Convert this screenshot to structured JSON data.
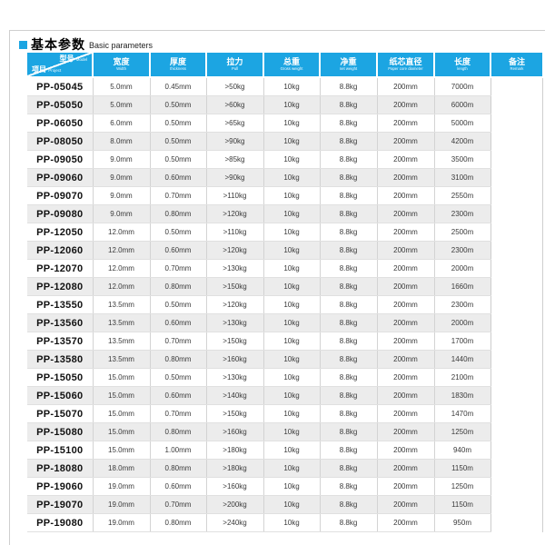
{
  "page": {
    "title_zh": "基本参数",
    "title_en": "Basic parameters"
  },
  "colors": {
    "header_blue": "#1ca5e2",
    "row_alt_gray": "#ececec",
    "title_square_blue": "#1ca5e2"
  },
  "table": {
    "corner": {
      "top_zh": "型号",
      "top_en": "Model",
      "bottom_zh": "项目",
      "bottom_en": "Project"
    },
    "columns": [
      {
        "zh": "宽度",
        "en": "Width"
      },
      {
        "zh": "厚度",
        "en": "thickness"
      },
      {
        "zh": "拉力",
        "en": "Pull"
      },
      {
        "zh": "总重",
        "en": "Gross weight"
      },
      {
        "zh": "净重",
        "en": "net weight"
      },
      {
        "zh": "纸芯直径",
        "en": "Paper core diameter"
      },
      {
        "zh": "长度",
        "en": "length"
      },
      {
        "zh": "备注",
        "en": "Remark"
      }
    ],
    "rows": [
      [
        "PP-05045",
        "5.0mm",
        "0.45mm",
        ">50kg",
        "10kg",
        "8.8kg",
        "200mm",
        "7000m",
        ""
      ],
      [
        "PP-05050",
        "5.0mm",
        "0.50mm",
        ">60kg",
        "10kg",
        "8.8kg",
        "200mm",
        "6000m",
        ""
      ],
      [
        "PP-06050",
        "6.0mm",
        "0.50mm",
        ">65kg",
        "10kg",
        "8.8kg",
        "200mm",
        "5000m",
        ""
      ],
      [
        "PP-08050",
        "8.0mm",
        "0.50mm",
        ">90kg",
        "10kg",
        "8.8kg",
        "200mm",
        "4200m",
        ""
      ],
      [
        "PP-09050",
        "9.0mm",
        "0.50mm",
        ">85kg",
        "10kg",
        "8.8kg",
        "200mm",
        "3500m",
        ""
      ],
      [
        "PP-09060",
        "9.0mm",
        "0.60mm",
        ">90kg",
        "10kg",
        "8.8kg",
        "200mm",
        "3100m",
        ""
      ],
      [
        "PP-09070",
        "9.0mm",
        "0.70mm",
        ">110kg",
        "10kg",
        "8.8kg",
        "200mm",
        "2550m",
        ""
      ],
      [
        "PP-09080",
        "9.0mm",
        "0.80mm",
        ">120kg",
        "10kg",
        "8.8kg",
        "200mm",
        "2300m",
        ""
      ],
      [
        "PP-12050",
        "12.0mm",
        "0.50mm",
        ">110kg",
        "10kg",
        "8.8kg",
        "200mm",
        "2500m",
        ""
      ],
      [
        "PP-12060",
        "12.0mm",
        "0.60mm",
        ">120kg",
        "10kg",
        "8.8kg",
        "200mm",
        "2300m",
        ""
      ],
      [
        "PP-12070",
        "12.0mm",
        "0.70mm",
        ">130kg",
        "10kg",
        "8.8kg",
        "200mm",
        "2000m",
        ""
      ],
      [
        "PP-12080",
        "12.0mm",
        "0.80mm",
        ">150kg",
        "10kg",
        "8.8kg",
        "200mm",
        "1660m",
        ""
      ],
      [
        "PP-13550",
        "13.5mm",
        "0.50mm",
        ">120kg",
        "10kg",
        "8.8kg",
        "200mm",
        "2300m",
        ""
      ],
      [
        "PP-13560",
        "13.5mm",
        "0.60mm",
        ">130kg",
        "10kg",
        "8.8kg",
        "200mm",
        "2000m",
        ""
      ],
      [
        "PP-13570",
        "13.5mm",
        "0.70mm",
        ">150kg",
        "10kg",
        "8.8kg",
        "200mm",
        "1700m",
        ""
      ],
      [
        "PP-13580",
        "13.5mm",
        "0.80mm",
        ">160kg",
        "10kg",
        "8.8kg",
        "200mm",
        "1440m",
        ""
      ],
      [
        "PP-15050",
        "15.0mm",
        "0.50mm",
        ">130kg",
        "10kg",
        "8.8kg",
        "200mm",
        "2100m",
        ""
      ],
      [
        "PP-15060",
        "15.0mm",
        "0.60mm",
        ">140kg",
        "10kg",
        "8.8kg",
        "200mm",
        "1830m",
        ""
      ],
      [
        "PP-15070",
        "15.0mm",
        "0.70mm",
        ">150kg",
        "10kg",
        "8.8kg",
        "200mm",
        "1470m",
        ""
      ],
      [
        "PP-15080",
        "15.0mm",
        "0.80mm",
        ">160kg",
        "10kg",
        "8.8kg",
        "200mm",
        "1250m",
        ""
      ],
      [
        "PP-15100",
        "15.0mm",
        "1.00mm",
        ">180kg",
        "10kg",
        "8.8kg",
        "200mm",
        "940m",
        ""
      ],
      [
        "PP-18080",
        "18.0mm",
        "0.80mm",
        ">180kg",
        "10kg",
        "8.8kg",
        "200mm",
        "1150m",
        ""
      ],
      [
        "PP-19060",
        "19.0mm",
        "0.60mm",
        ">160kg",
        "10kg",
        "8.8kg",
        "200mm",
        "1250m",
        ""
      ],
      [
        "PP-19070",
        "19.0mm",
        "0.70mm",
        ">200kg",
        "10kg",
        "8.8kg",
        "200mm",
        "1150m",
        ""
      ],
      [
        "PP-19080",
        "19.0mm",
        "0.80mm",
        ">240kg",
        "10kg",
        "8.8kg",
        "200mm",
        "950m",
        ""
      ]
    ]
  }
}
